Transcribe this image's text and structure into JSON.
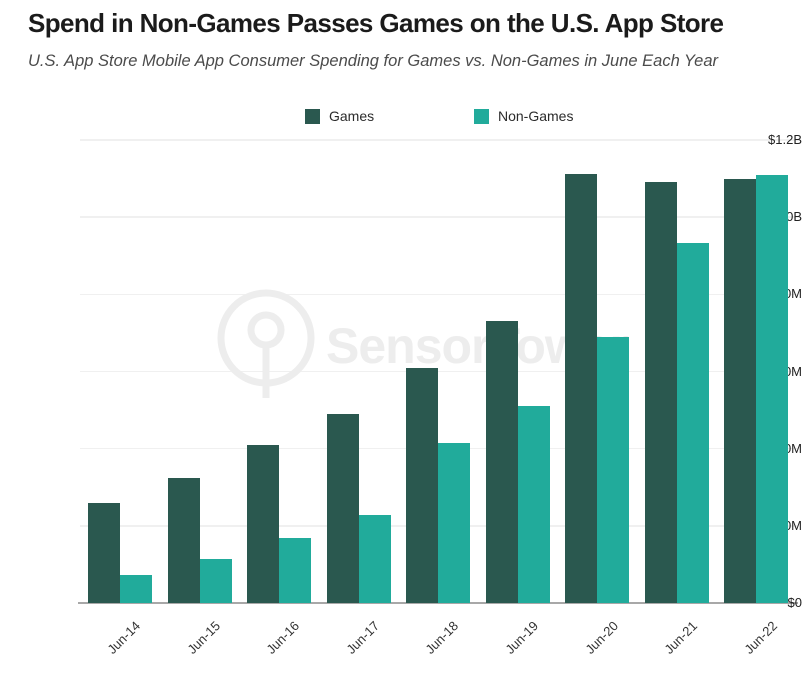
{
  "header": {
    "title": "Spend in Non-Games Passes Games on the U.S. App Store",
    "subtitle": "U.S. App Store Mobile App Consumer Spending for Games vs. Non-Games in June Each Year"
  },
  "watermark": {
    "brand_text": "SensorTower"
  },
  "colors": {
    "games": "#2A584F",
    "non_games": "#21AB9B",
    "axis_line": "#a8a8a8",
    "gridline": "#f0f0f0",
    "title_text": "#1b1b1b",
    "subtitle_text": "#4b4b4b"
  },
  "chart_data": {
    "type": "bar",
    "title": "Spend in Non-Games Passes Games on the U.S. App Store",
    "subtitle": "U.S. App Store Mobile App Consumer Spending for Games vs. Non-Games in June Each Year",
    "unit": "USD millions",
    "categories": [
      "Jun-14",
      "Jun-15",
      "Jun-16",
      "Jun-17",
      "Jun-18",
      "Jun-19",
      "Jun-20",
      "Jun-21",
      "Jun-22"
    ],
    "series": [
      {
        "name": "Games",
        "color": "#2A584F",
        "values": [
          260,
          325,
          410,
          490,
          610,
          730,
          1113,
          1091,
          1098
        ]
      },
      {
        "name": "Non-Games",
        "color": "#21AB9B",
        "values": [
          72,
          114,
          168,
          228,
          414,
          510,
          690,
          933,
          1108
        ]
      }
    ],
    "ylim": [
      0,
      1200
    ],
    "y_ticks": [
      {
        "value": 0,
        "label": "$0"
      },
      {
        "value": 200,
        "label": "$200M"
      },
      {
        "value": 400,
        "label": "$400M"
      },
      {
        "value": 600,
        "label": "$600M"
      },
      {
        "value": 800,
        "label": "$800M"
      },
      {
        "value": 1000,
        "label": "$1.0B"
      },
      {
        "value": 1200,
        "label": "$1.2B"
      }
    ],
    "xlabel": "",
    "ylabel": "",
    "grid": true,
    "legend_position": "top"
  }
}
